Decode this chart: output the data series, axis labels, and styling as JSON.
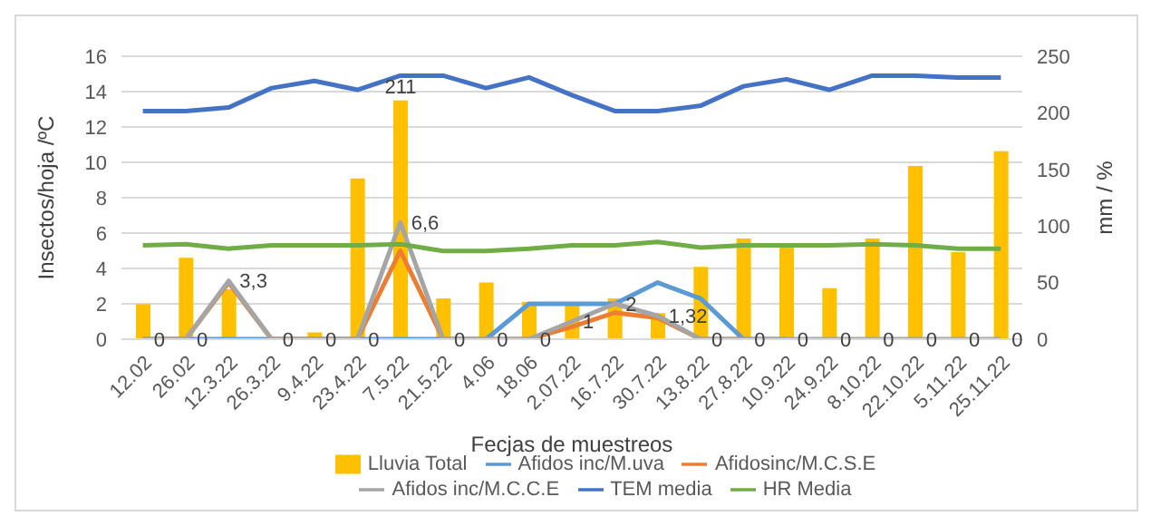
{
  "chart_data": {
    "type": "bar",
    "xlabel": "Fecjas de muestreos",
    "ylabel": "Insectos/hoja /ºC",
    "y2label": "mm / %",
    "categories": [
      "12.02",
      "26.02",
      "12.3.22",
      "26.3.22",
      "9.4.22",
      "23.4.22",
      "7.5.22",
      "21.5.22",
      "4.06",
      "18.06",
      "2.07.22",
      "16.7.22",
      "30.7.22",
      "13.8.22",
      "27.8.22",
      "10.9.22",
      "24.9.22",
      "8.10.22",
      "22.10.22",
      "5.11.22",
      "25.11.22"
    ],
    "series": [
      {
        "name": "Lluvia Total",
        "axis": "y2",
        "color": "#ffc000",
        "values": [
          31,
          72,
          44,
          0,
          6,
          142,
          211,
          36,
          50,
          33,
          30,
          36,
          23,
          64,
          89,
          81,
          45,
          89,
          153,
          77,
          166
        ],
        "value_labels": [
          null,
          null,
          null,
          null,
          null,
          null,
          "211",
          null,
          null,
          null,
          null,
          null,
          null,
          null,
          null,
          null,
          null,
          null,
          null,
          null,
          null
        ]
      },
      {
        "name": "Afidos inc/M.uva",
        "type": "line",
        "color": "#5b9bd5",
        "values": [
          0,
          0,
          0,
          0,
          0,
          0,
          0,
          0,
          0,
          2,
          2,
          2,
          3.2,
          2.3,
          0,
          0,
          null,
          null,
          null,
          null,
          null
        ]
      },
      {
        "name": "Afidosinc/M.C.S.E",
        "type": "line",
        "color": "#ed7d31",
        "values": [
          0,
          0,
          3.2,
          0,
          0,
          0,
          5,
          0,
          0,
          0,
          0.7,
          1.5,
          1.2,
          0,
          0,
          null,
          null,
          null,
          null,
          null,
          null
        ]
      },
      {
        "name": "Afidos inc/M.C.C.E",
        "type": "line",
        "color": "#a5a5a5",
        "values": [
          0,
          0,
          3.3,
          0,
          0,
          0,
          6.6,
          0,
          0,
          0,
          1,
          2,
          1.32,
          0,
          0,
          0,
          0,
          0,
          0,
          0,
          0
        ],
        "value_labels": [
          "0",
          "0",
          "3,3",
          "0",
          "0",
          "0",
          "6,6",
          "0",
          "0",
          "0",
          "1",
          "2",
          "1,32",
          "0",
          "0",
          "0",
          "0",
          "0",
          "0",
          "0",
          "0"
        ]
      },
      {
        "name": "TEM media",
        "type": "line",
        "color": "#4472c4",
        "values": [
          12.9,
          12.9,
          13.1,
          14.2,
          14.6,
          14.1,
          14.9,
          14.9,
          14.2,
          14.8,
          13.8,
          12.9,
          12.9,
          13.2,
          14.3,
          14.7,
          14.1,
          14.9,
          14.9,
          14.8,
          14.8
        ]
      },
      {
        "name": "HR Media",
        "type": "line",
        "axis": "y2",
        "color": "#70ad47",
        "values": [
          83,
          84,
          80,
          83,
          83,
          83,
          84,
          78,
          78,
          80,
          83,
          83,
          86,
          81,
          83,
          83,
          83,
          84,
          83,
          80,
          80
        ]
      }
    ],
    "ylim": [
      0,
      16
    ],
    "yticks": [
      0,
      2,
      4,
      6,
      8,
      10,
      12,
      14,
      16
    ],
    "y2lim": [
      0,
      250
    ],
    "y2ticks": [
      0,
      50,
      100,
      150,
      200,
      250
    ],
    "grid": "y",
    "legend": "bottom",
    "marker": "none",
    "line_style": "solid"
  }
}
